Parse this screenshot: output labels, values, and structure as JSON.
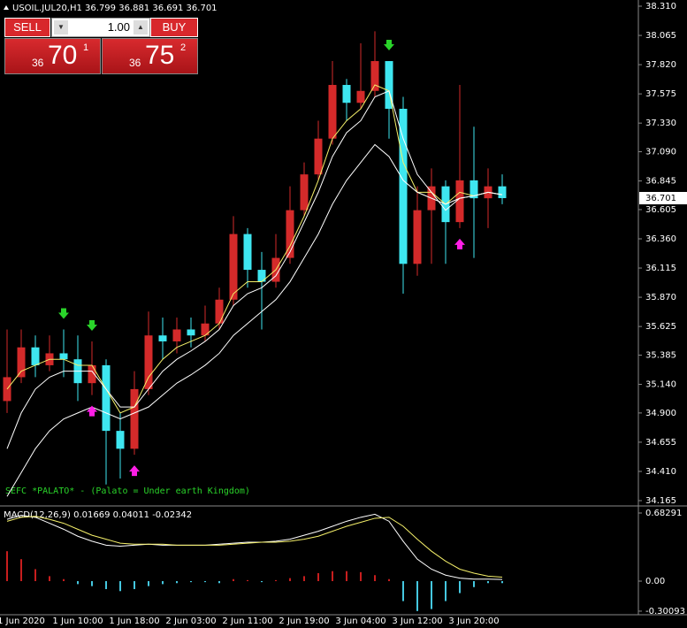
{
  "chart_data": [
    {
      "type": "candlestick",
      "title": "USOIL.JUL20,H1  36.799 36.881 36.691 36.701",
      "annotation": "SEFC *PALATO* - (Palato = Under earth Kingdom)",
      "categories": [
        null,
        "1 Jun 2020",
        null,
        null,
        null,
        "1 Jun 10:00",
        null,
        null,
        null,
        "1 Jun 18:00",
        null,
        null,
        null,
        "2 Jun 03:00",
        null,
        null,
        null,
        "2 Jun 11:00",
        null,
        null,
        null,
        "2 Jun 19:00",
        null,
        null,
        null,
        "3 Jun 04:00",
        null,
        null,
        null,
        "3 Jun 12:00",
        null,
        null,
        null,
        "3 Jun 20:00",
        null,
        null
      ],
      "open": [
        35.0,
        35.2,
        35.45,
        35.3,
        35.4,
        35.35,
        35.15,
        35.3,
        34.75,
        34.6,
        35.1,
        35.55,
        35.5,
        35.6,
        35.55,
        35.65,
        35.85,
        36.4,
        36.1,
        36.0,
        36.2,
        36.6,
        36.9,
        37.2,
        37.65,
        37.5,
        37.6,
        37.85,
        37.45,
        36.15,
        36.6,
        36.8,
        36.5,
        36.85,
        36.7,
        36.8
      ],
      "high": [
        35.6,
        35.6,
        35.55,
        35.55,
        35.6,
        35.55,
        35.5,
        35.35,
        34.9,
        35.25,
        35.75,
        35.7,
        35.7,
        35.7,
        35.8,
        35.95,
        36.55,
        36.45,
        36.25,
        36.4,
        36.8,
        37.0,
        37.35,
        37.85,
        37.7,
        38.0,
        38.1,
        37.85,
        37.55,
        36.8,
        36.95,
        36.85,
        37.65,
        37.3,
        36.95,
        36.9
      ],
      "low": [
        34.9,
        35.15,
        35.2,
        35.25,
        35.2,
        35.0,
        35.05,
        34.3,
        34.35,
        34.55,
        35.05,
        35.35,
        35.4,
        35.45,
        35.5,
        35.6,
        35.8,
        35.95,
        35.6,
        35.95,
        36.15,
        36.55,
        36.85,
        37.15,
        37.35,
        37.45,
        37.55,
        37.2,
        35.9,
        36.05,
        36.15,
        36.15,
        36.45,
        36.2,
        36.45,
        36.65
      ],
      "close": [
        35.2,
        35.45,
        35.3,
        35.4,
        35.35,
        35.15,
        35.3,
        34.75,
        34.6,
        35.1,
        35.55,
        35.5,
        35.6,
        35.55,
        35.65,
        35.85,
        36.4,
        36.1,
        36.0,
        36.2,
        36.6,
        36.9,
        37.2,
        37.65,
        37.5,
        37.6,
        37.85,
        37.45,
        36.15,
        36.6,
        36.8,
        36.5,
        36.85,
        36.7,
        36.8,
        36.701
      ],
      "up_color": "#d42a2a",
      "down_color": "#3ee6f0",
      "series": [
        {
          "color": "#f5f06a",
          "values": [
            35.1,
            35.25,
            35.3,
            35.35,
            35.35,
            35.3,
            35.3,
            35.1,
            34.9,
            34.95,
            35.2,
            35.35,
            35.45,
            35.5,
            35.55,
            35.65,
            35.9,
            36.0,
            36.0,
            36.1,
            36.3,
            36.55,
            36.85,
            37.2,
            37.35,
            37.45,
            37.65,
            37.6,
            37.0,
            36.75,
            36.75,
            36.65,
            36.75,
            36.72,
            36.75,
            36.73
          ]
        },
        {
          "color": "#ffffff",
          "values": [
            34.6,
            34.9,
            35.1,
            35.2,
            35.25,
            35.25,
            35.25,
            35.1,
            34.95,
            34.95,
            35.1,
            35.25,
            35.35,
            35.42,
            35.5,
            35.6,
            35.8,
            35.9,
            35.95,
            36.05,
            36.25,
            36.5,
            36.75,
            37.05,
            37.25,
            37.35,
            37.55,
            37.6,
            37.2,
            36.9,
            36.75,
            36.6,
            36.7,
            36.72,
            36.75,
            36.73
          ]
        },
        {
          "color": "#ffffff",
          "values": [
            34.2,
            34.4,
            34.6,
            34.75,
            34.85,
            34.9,
            34.95,
            34.9,
            34.85,
            34.9,
            34.95,
            35.05,
            35.15,
            35.22,
            35.3,
            35.4,
            35.55,
            35.65,
            35.75,
            35.85,
            36.0,
            36.2,
            36.4,
            36.65,
            36.85,
            37.0,
            37.15,
            37.05,
            36.85,
            36.75,
            36.7,
            36.65,
            36.7,
            36.72,
            36.75,
            36.73
          ]
        }
      ],
      "down_arrows": [
        null,
        null,
        null,
        null,
        35.6,
        null,
        35.5,
        null,
        null,
        null,
        null,
        null,
        null,
        null,
        null,
        null,
        null,
        null,
        null,
        null,
        null,
        null,
        null,
        null,
        null,
        null,
        null,
        37.85,
        null,
        null,
        null,
        null,
        null,
        null,
        null,
        null
      ],
      "up_arrows": [
        null,
        null,
        null,
        null,
        null,
        null,
        35.05,
        null,
        null,
        34.55,
        null,
        null,
        null,
        null,
        null,
        null,
        null,
        null,
        null,
        null,
        null,
        null,
        null,
        null,
        null,
        null,
        null,
        null,
        null,
        null,
        null,
        null,
        36.45,
        null,
        null,
        null
      ],
      "down_arrow_color": "#2ad42a",
      "up_arrow_color": "#ff1ee6",
      "ylim": [
        34.128,
        38.362
      ],
      "yticks": [
        {
          "value": 38.31,
          "label": "38.310"
        },
        38.065,
        {
          "value": 37.82,
          "label": "37.820"
        },
        37.575,
        {
          "value": 37.33,
          "label": "37.330"
        },
        {
          "value": 37.09,
          "label": "37.090"
        },
        36.845,
        36.605,
        {
          "value": 36.36,
          "label": "36.360"
        },
        36.115,
        {
          "value": 35.87,
          "label": "35.870"
        },
        35.625,
        35.385,
        {
          "value": 35.14,
          "label": "35.140"
        },
        {
          "value": 34.9,
          "label": "34.900"
        },
        34.655,
        {
          "value": 34.41,
          "label": "34.410"
        },
        34.165
      ]
    },
    {
      "type": "macd",
      "title": "MACD(12,26,9) 0.01669 0.04011 -0.02342",
      "values": [
        0.3,
        0.22,
        0.12,
        0.05,
        0.02,
        -0.03,
        -0.05,
        -0.08,
        -0.1,
        -0.08,
        -0.05,
        -0.03,
        -0.02,
        -0.01,
        -0.01,
        -0.02,
        0.02,
        0.01,
        -0.01,
        0.01,
        0.03,
        0.05,
        0.08,
        0.1,
        0.1,
        0.09,
        0.06,
        0.02,
        -0.2,
        -0.3,
        -0.28,
        -0.2,
        -0.12,
        -0.06,
        -0.02,
        -0.02
      ],
      "up_color": "#c81e1e",
      "down_color": "#45c8e0",
      "series": [
        {
          "color": "#ffffff",
          "values": [
            0.62,
            0.66,
            0.64,
            0.58,
            0.52,
            0.45,
            0.4,
            0.36,
            0.35,
            0.36,
            0.37,
            0.36,
            0.36,
            0.36,
            0.36,
            0.37,
            0.38,
            0.39,
            0.39,
            0.4,
            0.42,
            0.46,
            0.5,
            0.55,
            0.6,
            0.64,
            0.67,
            0.6,
            0.4,
            0.22,
            0.12,
            0.06,
            0.03,
            0.02,
            0.02,
            0.01669
          ]
        },
        {
          "color": "#f5f06a",
          "values": [
            0.6,
            0.64,
            0.65,
            0.62,
            0.58,
            0.52,
            0.46,
            0.42,
            0.38,
            0.37,
            0.37,
            0.37,
            0.36,
            0.36,
            0.36,
            0.36,
            0.37,
            0.38,
            0.39,
            0.39,
            0.4,
            0.42,
            0.45,
            0.5,
            0.55,
            0.59,
            0.63,
            0.64,
            0.55,
            0.42,
            0.3,
            0.2,
            0.12,
            0.08,
            0.05,
            0.04011
          ]
        }
      ],
      "ylim": [
        -0.328,
        0.736
      ],
      "yticks": [
        0.68291,
        {
          "value": 0,
          "label": "0.00"
        },
        -0.30093
      ]
    }
  ],
  "trade_panel": {
    "sell": "SELL",
    "buy": "BUY",
    "volume": "1.00",
    "bid_small": "36",
    "bid_big": "70",
    "bid_sup": "1",
    "ask_small": "36",
    "ask_big": "75",
    "ask_sup": "2"
  }
}
